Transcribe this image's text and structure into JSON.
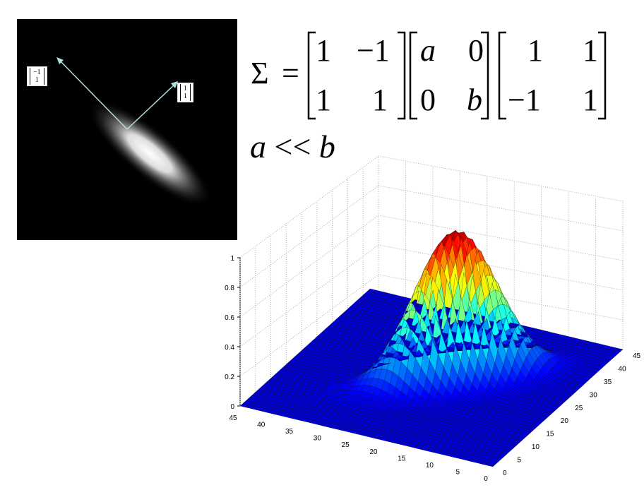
{
  "formula": {
    "lhs": "Σ",
    "equals": "=",
    "matrix1": [
      [
        "1",
        "−1"
      ],
      [
        "1",
        "1"
      ]
    ],
    "matrix2": [
      [
        "a",
        "0"
      ],
      [
        "0",
        "b"
      ]
    ],
    "matrix3": [
      [
        "1",
        "1"
      ],
      [
        "−1",
        "1"
      ]
    ]
  },
  "relation": {
    "left": "a",
    "op": "<<",
    "right": "b"
  },
  "vectors": {
    "left": {
      "top": "−1",
      "bottom": "1"
    },
    "right": {
      "top": "1",
      "bottom": "1"
    }
  },
  "colors": {
    "surface_low": "#2020b0",
    "surface_high": "#c00000",
    "arrow": "#aee0e0",
    "background": "#000000"
  },
  "chart_data": {
    "type": "surface",
    "z_ticks": [
      "0",
      "0.2",
      "0.4",
      "0.6",
      "0.8",
      "1"
    ],
    "x_ticks": [
      "45",
      "40",
      "35",
      "30",
      "25",
      "20",
      "15",
      "10",
      "5",
      "0"
    ],
    "y_ticks": [
      "0",
      "5",
      "10",
      "15",
      "20",
      "25",
      "30",
      "35",
      "40",
      "45"
    ],
    "x_range": [
      0,
      45
    ],
    "y_range": [
      0,
      45
    ],
    "z_range": [
      0,
      1
    ],
    "peak": 1,
    "grid": true
  }
}
